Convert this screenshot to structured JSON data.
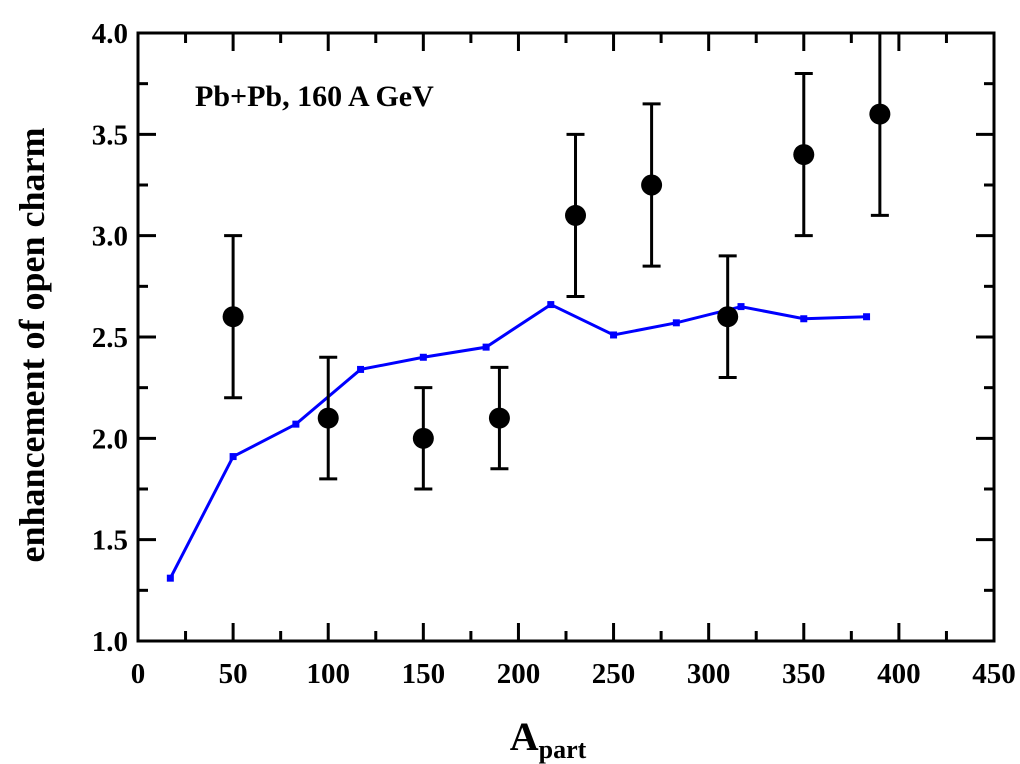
{
  "chart_data": {
    "type": "scatter",
    "annotation": "Pb+Pb,  160 A GeV",
    "xlabel": {
      "main": "A",
      "sub": "part"
    },
    "ylabel": "enhancement of open charm",
    "xlim": [
      0,
      450
    ],
    "ylim": [
      1.0,
      4.0
    ],
    "x_ticks": [
      "0",
      "50",
      "100",
      "150",
      "200",
      "250",
      "300",
      "350",
      "400",
      "450"
    ],
    "y_ticks": [
      "1.0",
      "1.5",
      "2.0",
      "2.5",
      "3.0",
      "3.5",
      "4.0"
    ],
    "grid": false,
    "colors": {
      "measurement": "#000000",
      "model": "#0000ff"
    },
    "series": [
      {
        "kind": "points-with-error-bars",
        "x": [
          50,
          100,
          150,
          190,
          230,
          270,
          310,
          350,
          390
        ],
        "y": [
          2.6,
          2.1,
          2.0,
          2.1,
          3.1,
          3.25,
          2.6,
          3.4,
          3.6
        ],
        "y_low": [
          2.2,
          1.8,
          1.75,
          1.85,
          2.7,
          2.85,
          2.3,
          3.0,
          3.1
        ],
        "y_high": [
          3.0,
          2.4,
          2.25,
          2.35,
          3.5,
          3.65,
          2.9,
          3.8,
          4.0
        ]
      },
      {
        "kind": "line-with-markers",
        "x": [
          17,
          50,
          83,
          117,
          150,
          183,
          217,
          250,
          283,
          317,
          350,
          383
        ],
        "y": [
          1.31,
          1.91,
          2.07,
          2.34,
          2.4,
          2.45,
          2.66,
          2.51,
          2.57,
          2.65,
          2.59,
          2.6
        ]
      }
    ]
  }
}
